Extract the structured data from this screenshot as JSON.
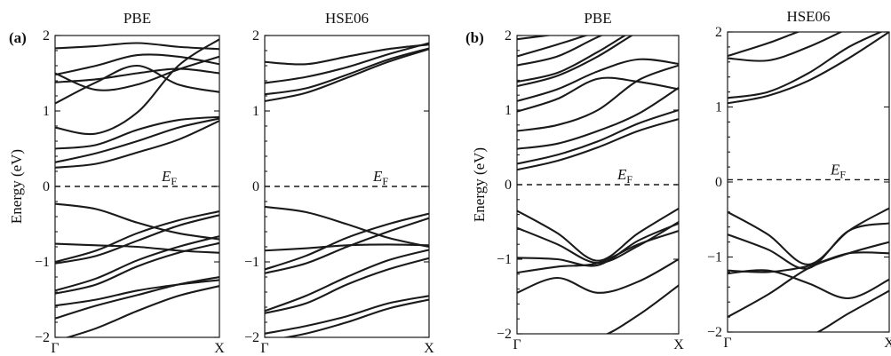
{
  "chart_data": [
    {
      "type": "line",
      "panel": "(a)",
      "title": "PBE",
      "ylabel": "Energy (eV)",
      "xticks": [
        "Γ",
        "X"
      ],
      "yticks": [
        "2",
        "1",
        "0",
        "−1",
        "−2"
      ],
      "ylim": [
        -2,
        2
      ],
      "xlim": [
        0,
        1
      ],
      "fermi_label": {
        "main": "E",
        "sub": "F"
      },
      "fermi_level": 0,
      "series": [
        {
          "x": [
            0,
            0.25,
            0.5,
            0.75,
            1
          ],
          "y": [
            1.83,
            1.86,
            1.9,
            1.85,
            1.82
          ]
        },
        {
          "x": [
            0,
            0.25,
            0.5,
            0.75,
            1
          ],
          "y": [
            1.48,
            1.6,
            1.74,
            1.72,
            1.62
          ]
        },
        {
          "x": [
            0,
            0.25,
            0.5,
            0.75,
            1
          ],
          "y": [
            1.5,
            1.28,
            1.35,
            1.55,
            1.72
          ]
        },
        {
          "x": [
            0,
            0.25,
            0.5,
            0.75,
            1
          ],
          "y": [
            1.38,
            1.42,
            1.5,
            1.56,
            1.5
          ]
        },
        {
          "x": [
            0,
            0.25,
            0.5,
            0.75,
            1
          ],
          "y": [
            1.1,
            1.38,
            1.6,
            1.35,
            1.25
          ]
        },
        {
          "x": [
            0,
            0.25,
            0.5,
            0.75,
            1
          ],
          "y": [
            0.78,
            0.7,
            0.98,
            1.6,
            1.95
          ]
        },
        {
          "x": [
            0,
            0.25,
            0.5,
            0.75,
            1
          ],
          "y": [
            0.5,
            0.55,
            0.75,
            0.88,
            0.92
          ]
        },
        {
          "x": [
            0,
            0.25,
            0.5,
            0.75,
            1
          ],
          "y": [
            0.32,
            0.44,
            0.6,
            0.78,
            0.9
          ]
        },
        {
          "x": [
            0,
            0.25,
            0.5,
            0.75,
            1
          ],
          "y": [
            0.25,
            0.3,
            0.45,
            0.62,
            0.87
          ]
        },
        {
          "x": [
            0,
            0.25,
            0.5,
            0.75,
            1
          ],
          "y": [
            -0.23,
            -0.3,
            -0.48,
            -0.62,
            -0.7
          ]
        },
        {
          "x": [
            0,
            0.25,
            0.5,
            0.75,
            1
          ],
          "y": [
            -0.76,
            -0.78,
            -0.8,
            -0.85,
            -0.88
          ]
        },
        {
          "x": [
            0,
            0.25,
            0.5,
            0.75,
            1
          ],
          "y": [
            -1.0,
            -0.85,
            -0.62,
            -0.45,
            -0.33
          ]
        },
        {
          "x": [
            0,
            0.25,
            0.5,
            0.75,
            1
          ],
          "y": [
            -1.02,
            -0.92,
            -0.72,
            -0.52,
            -0.38
          ]
        },
        {
          "x": [
            0,
            0.25,
            0.5,
            0.75,
            1
          ],
          "y": [
            -1.38,
            -1.22,
            -0.98,
            -0.8,
            -0.66
          ]
        },
        {
          "x": [
            0,
            0.25,
            0.5,
            0.75,
            1
          ],
          "y": [
            -1.42,
            -1.3,
            -1.06,
            -0.88,
            -0.75
          ]
        },
        {
          "x": [
            0,
            0.25,
            0.5,
            0.75,
            1
          ],
          "y": [
            -1.58,
            -1.5,
            -1.38,
            -1.3,
            -1.24
          ]
        },
        {
          "x": [
            0,
            0.25,
            0.5,
            0.75,
            1
          ],
          "y": [
            -1.75,
            -1.58,
            -1.44,
            -1.3,
            -1.2
          ]
        },
        {
          "x": [
            0,
            0.25,
            0.5,
            0.75,
            1
          ],
          "y": [
            -2.05,
            -1.88,
            -1.65,
            -1.45,
            -1.32
          ]
        }
      ]
    },
    {
      "type": "line",
      "title": "HSE06",
      "xticks": [
        "Γ",
        "X"
      ],
      "yticks": [
        "2",
        "1",
        "0",
        "−1",
        "−2"
      ],
      "ylim": [
        -2,
        2
      ],
      "xlim": [
        0,
        1
      ],
      "fermi_label": {
        "main": "E",
        "sub": "F"
      },
      "fermi_level": 0,
      "series": [
        {
          "x": [
            0,
            0.25,
            0.5,
            0.75,
            1
          ],
          "y": [
            1.65,
            1.62,
            1.72,
            1.82,
            1.88
          ]
        },
        {
          "x": [
            0,
            0.25,
            0.5,
            0.75,
            1
          ],
          "y": [
            1.37,
            1.45,
            1.58,
            1.75,
            1.9
          ]
        },
        {
          "x": [
            0,
            0.25,
            0.5,
            0.75,
            1
          ],
          "y": [
            1.22,
            1.3,
            1.48,
            1.68,
            1.83
          ]
        },
        {
          "x": [
            0,
            0.25,
            0.5,
            0.75,
            1
          ],
          "y": [
            1.13,
            1.24,
            1.44,
            1.65,
            1.82
          ]
        },
        {
          "x": [
            0,
            0.25,
            0.5,
            0.75,
            1
          ],
          "y": [
            -0.27,
            -0.34,
            -0.5,
            -0.68,
            -0.8
          ]
        },
        {
          "x": [
            0,
            0.25,
            0.5,
            0.75,
            1
          ],
          "y": [
            -0.85,
            -0.82,
            -0.78,
            -0.77,
            -0.78
          ]
        },
        {
          "x": [
            0,
            0.25,
            0.5,
            0.75,
            1
          ],
          "y": [
            -1.1,
            -0.92,
            -0.68,
            -0.5,
            -0.36
          ]
        },
        {
          "x": [
            0,
            0.25,
            0.5,
            0.75,
            1
          ],
          "y": [
            -1.15,
            -1.02,
            -0.8,
            -0.6,
            -0.42
          ]
        },
        {
          "x": [
            0,
            0.25,
            0.5,
            0.75,
            1
          ],
          "y": [
            -1.65,
            -1.45,
            -1.2,
            -0.98,
            -0.84
          ]
        },
        {
          "x": [
            0,
            0.25,
            0.5,
            0.75,
            1
          ],
          "y": [
            -1.68,
            -1.55,
            -1.3,
            -1.1,
            -0.95
          ]
        },
        {
          "x": [
            0,
            0.25,
            0.5,
            0.75,
            1
          ],
          "y": [
            -1.95,
            -1.85,
            -1.72,
            -1.55,
            -1.45
          ]
        },
        {
          "x": [
            0,
            0.25,
            0.5,
            0.75,
            1
          ],
          "y": [
            -2.05,
            -1.95,
            -1.8,
            -1.62,
            -1.5
          ]
        }
      ]
    },
    {
      "type": "line",
      "panel": "(b)",
      "title": "PBE",
      "ylabel": "Energy (eV)",
      "xticks": [
        "Γ",
        "X"
      ],
      "yticks": [
        "2",
        "1",
        "0",
        "−1",
        "−2"
      ],
      "ylim": [
        -2,
        2
      ],
      "xlim": [
        0,
        1
      ],
      "fermi_label": {
        "main": "E",
        "sub": "F"
      },
      "fermi_level": 0,
      "series": [
        {
          "x": [
            0,
            0.25,
            0.5,
            0.75,
            1
          ],
          "y": [
            1.95,
            2.02,
            2.1,
            2.2,
            2.3
          ]
        },
        {
          "x": [
            0,
            0.25,
            0.5,
            0.75,
            1
          ],
          "y": [
            1.72,
            1.88,
            2.05,
            2.2,
            2.3
          ]
        },
        {
          "x": [
            0,
            0.25,
            0.5,
            0.75,
            1
          ],
          "y": [
            1.6,
            1.72,
            1.98,
            2.2,
            2.3
          ]
        },
        {
          "x": [
            0,
            0.25,
            0.5,
            0.75,
            1
          ],
          "y": [
            1.38,
            1.5,
            1.78,
            2.1,
            2.3
          ]
        },
        {
          "x": [
            0,
            0.25,
            0.5,
            0.75,
            1
          ],
          "y": [
            1.32,
            1.46,
            1.72,
            2.05,
            2.3
          ]
        },
        {
          "x": [
            0,
            0.25,
            0.5,
            0.75,
            1
          ],
          "y": [
            1.12,
            1.28,
            1.52,
            1.68,
            1.62
          ]
        },
        {
          "x": [
            0,
            0.25,
            0.5,
            0.75,
            1
          ],
          "y": [
            0.98,
            1.15,
            1.42,
            1.38,
            1.28
          ]
        },
        {
          "x": [
            0,
            0.25,
            0.5,
            0.75,
            1
          ],
          "y": [
            0.72,
            0.8,
            1.0,
            1.4,
            1.6
          ]
        },
        {
          "x": [
            0,
            0.25,
            0.5,
            0.75,
            1
          ],
          "y": [
            0.48,
            0.55,
            0.72,
            0.95,
            1.3
          ]
        },
        {
          "x": [
            0,
            0.25,
            0.5,
            0.75,
            1
          ],
          "y": [
            0.28,
            0.4,
            0.58,
            0.82,
            1.0
          ]
        },
        {
          "x": [
            0,
            0.25,
            0.5,
            0.75,
            1
          ],
          "y": [
            0.2,
            0.32,
            0.5,
            0.72,
            0.88
          ]
        },
        {
          "x": [
            0,
            0.25,
            0.5,
            0.75,
            1
          ],
          "y": [
            -0.35,
            -0.65,
            -1.02,
            -0.65,
            -0.32
          ]
        },
        {
          "x": [
            0,
            0.25,
            0.5,
            0.75,
            1
          ],
          "y": [
            -0.58,
            -0.8,
            -1.05,
            -0.82,
            -0.5
          ]
        },
        {
          "x": [
            0,
            0.25,
            0.5,
            0.75,
            1
          ],
          "y": [
            -0.98,
            -1.0,
            -1.08,
            -0.75,
            -0.52
          ]
        },
        {
          "x": [
            0,
            0.25,
            0.5,
            0.75,
            1
          ],
          "y": [
            -1.18,
            -1.1,
            -1.05,
            -0.8,
            -0.62
          ]
        },
        {
          "x": [
            0,
            0.25,
            0.5,
            0.75,
            1
          ],
          "y": [
            -1.45,
            -1.25,
            -1.45,
            -1.3,
            -1.0
          ]
        },
        {
          "x": [
            0,
            0.25,
            0.5,
            0.75,
            1
          ],
          "y": [
            -2.05,
            -2.05,
            -2.05,
            -1.75,
            -1.35
          ]
        }
      ]
    },
    {
      "type": "line",
      "title": "HSE06",
      "xticks": [
        "Γ",
        "X"
      ],
      "yticks": [
        "2",
        "1",
        "0",
        "−1",
        "−2"
      ],
      "ylim": [
        -2,
        2
      ],
      "xlim": [
        0,
        1
      ],
      "fermi_label": {
        "main": "E",
        "sub": "F"
      },
      "fermi_level": 0.03,
      "series": [
        {
          "x": [
            0,
            0.25,
            0.5,
            0.75,
            1
          ],
          "y": [
            1.68,
            1.85,
            2.05,
            2.2,
            2.3
          ]
        },
        {
          "x": [
            0,
            0.25,
            0.5,
            0.75,
            1
          ],
          "y": [
            1.65,
            1.62,
            1.8,
            2.05,
            2.3
          ]
        },
        {
          "x": [
            0,
            0.25,
            0.5,
            0.75,
            1
          ],
          "y": [
            1.12,
            1.2,
            1.45,
            1.8,
            2.05
          ]
        },
        {
          "x": [
            0,
            0.25,
            0.5,
            0.75,
            1
          ],
          "y": [
            1.05,
            1.15,
            1.35,
            1.65,
            2.0
          ]
        },
        {
          "x": [
            0,
            0.25,
            0.5,
            0.75,
            1
          ],
          "y": [
            -0.4,
            -0.7,
            -1.1,
            -0.65,
            -0.35
          ]
        },
        {
          "x": [
            0,
            0.25,
            0.5,
            0.75,
            1
          ],
          "y": [
            -0.7,
            -0.9,
            -1.15,
            -0.65,
            -0.55
          ]
        },
        {
          "x": [
            0,
            0.25,
            0.5,
            0.75,
            1
          ],
          "y": [
            -1.18,
            -1.2,
            -1.12,
            -0.95,
            -0.95
          ]
        },
        {
          "x": [
            0,
            0.25,
            0.5,
            0.75,
            1
          ],
          "y": [
            -1.22,
            -1.18,
            -1.35,
            -1.55,
            -1.3
          ]
        },
        {
          "x": [
            0,
            0.25,
            0.5,
            0.75,
            1
          ],
          "y": [
            -1.8,
            -1.5,
            -1.15,
            -0.95,
            -0.8
          ]
        },
        {
          "x": [
            0,
            0.25,
            0.5,
            0.75,
            1
          ],
          "y": [
            -2.05,
            -2.05,
            -2.05,
            -1.75,
            -1.45
          ]
        }
      ]
    }
  ]
}
